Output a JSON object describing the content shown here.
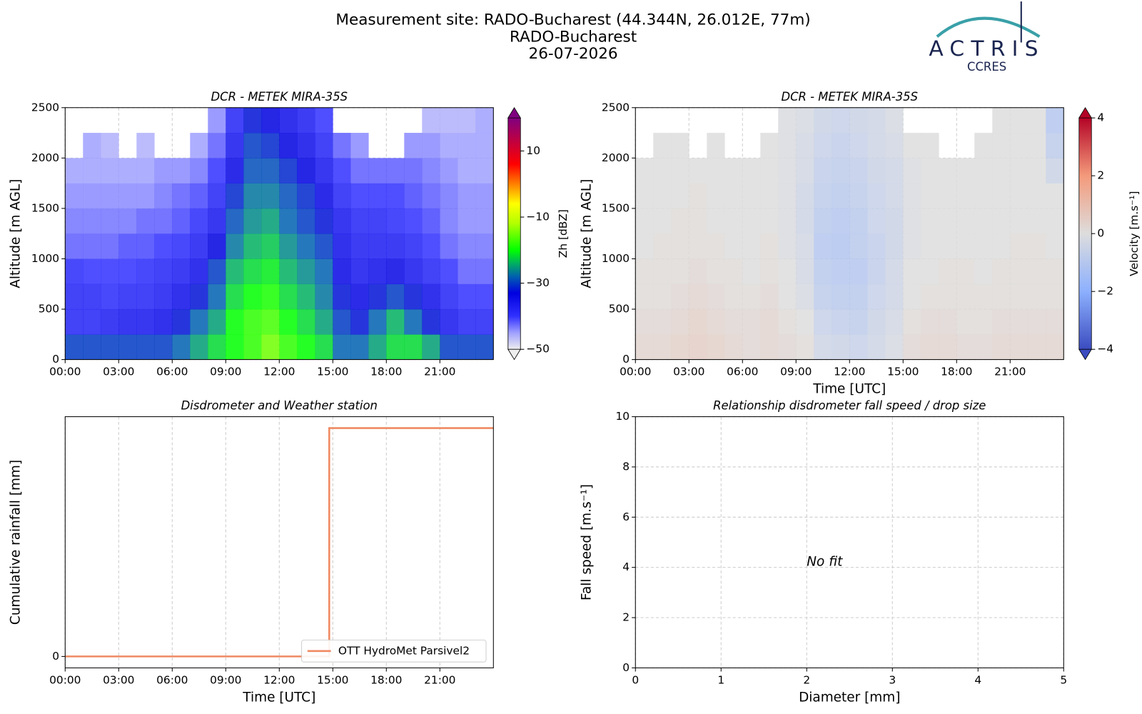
{
  "header": {
    "lines": [
      "Measurement site: RADO-Bucharest (44.344N, 26.012E, 77m)",
      "RADO-Bucharest",
      "26-07-2026"
    ]
  },
  "logo": {
    "name": "ACTRIS",
    "sub": "CCRES"
  },
  "chart_data": [
    {
      "type": "heatmap",
      "title": "DCR - METEK MIRA-35S",
      "ylabel": "Altitude [m AGL]",
      "xlim": [
        0,
        24
      ],
      "xticks": [
        {
          "value": 0,
          "label": "00:00"
        },
        {
          "value": 3,
          "label": "03:00"
        },
        {
          "value": 6,
          "label": "06:00"
        },
        {
          "value": 9,
          "label": "09:00"
        },
        {
          "value": 12,
          "label": "12:00"
        },
        {
          "value": 15,
          "label": "15:00"
        },
        {
          "value": 18,
          "label": "18:00"
        },
        {
          "value": 21,
          "label": "21:00"
        }
      ],
      "ylim": [
        0,
        2500
      ],
      "yticks": [
        0,
        500,
        1000,
        1500,
        2000,
        2500
      ],
      "grid": "both",
      "x": [
        0,
        1,
        2,
        3,
        4,
        5,
        6,
        7,
        8,
        9,
        10,
        11,
        12,
        13,
        14,
        15,
        16,
        17,
        18,
        19,
        20,
        21,
        22,
        23
      ],
      "y": [
        0,
        250,
        500,
        750,
        1000,
        1250,
        1500,
        1750,
        2000,
        2250
      ],
      "z": [
        [
          -30,
          -30,
          -30,
          -30,
          -30,
          -30,
          -28,
          -25,
          -22,
          -20,
          -18,
          -15,
          -18,
          -20,
          -22,
          -28,
          -28,
          -25,
          -22,
          -22,
          -25,
          -30,
          -30,
          -30
        ],
        [
          -38,
          -38,
          -37,
          -36,
          -36,
          -35,
          -32,
          -28,
          -25,
          -20,
          -18,
          -17,
          -20,
          -22,
          -25,
          -30,
          -32,
          -28,
          -24,
          -28,
          -32,
          -36,
          -38,
          -38
        ],
        [
          -38,
          -38,
          -39,
          -38,
          -38,
          -37,
          -35,
          -32,
          -28,
          -22,
          -20,
          -19,
          -22,
          -24,
          -27,
          -32,
          -34,
          -32,
          -30,
          -32,
          -35,
          -38,
          -40,
          -40
        ],
        [
          -39,
          -40,
          -40,
          -40,
          -39,
          -38,
          -37,
          -35,
          -30,
          -24,
          -22,
          -21,
          -24,
          -26,
          -28,
          -34,
          -36,
          -35,
          -34,
          -36,
          -38,
          -40,
          -42,
          -42
        ],
        [
          -42,
          -42,
          -42,
          -41,
          -41,
          -40,
          -39,
          -37,
          -33,
          -27,
          -24,
          -23,
          -26,
          -28,
          -30,
          -35,
          -37,
          -37,
          -37,
          -38,
          -40,
          -42,
          -43,
          -43
        ],
        [
          -43,
          -43,
          -43,
          -43,
          -42,
          -42,
          -41,
          -39,
          -36,
          -29,
          -26,
          -25,
          -28,
          -30,
          -32,
          -36,
          -38,
          -38,
          -39,
          -40,
          -41,
          -43,
          -44,
          -44
        ],
        [
          -44,
          -44,
          -44,
          -44,
          -44,
          -43,
          -42,
          -41,
          -38,
          -31,
          -27,
          -27,
          -29,
          -31,
          -34,
          -38,
          -40,
          -40,
          -40,
          -41,
          -42,
          -43,
          -44,
          -44
        ],
        [
          -45,
          -45,
          -45,
          -45,
          -45,
          -44,
          -44,
          -43,
          -40,
          -34,
          -29,
          -29,
          -31,
          -33,
          -36,
          -40,
          -42,
          -42,
          -42,
          -42,
          -43,
          -44,
          -45,
          -45
        ],
        [
          null,
          -45,
          -46,
          null,
          -46,
          null,
          null,
          -45,
          -42,
          -36,
          -30,
          -31,
          -33,
          -35,
          -38,
          -42,
          -44,
          null,
          null,
          -44,
          -44,
          -45,
          -45,
          -45
        ],
        [
          null,
          null,
          null,
          null,
          null,
          null,
          null,
          null,
          -44,
          -38,
          -32,
          -33,
          -35,
          -37,
          -40,
          null,
          null,
          null,
          null,
          null,
          -46,
          -46,
          -46,
          -45
        ]
      ],
      "colorbar": {
        "label": "Zh [dBZ]",
        "clim": [
          -50,
          20
        ],
        "ticks": [
          10,
          {
            "value": -10,
            "label": "−10"
          },
          {
            "value": -30,
            "label": "−30"
          },
          {
            "value": -50,
            "label": "−50"
          }
        ],
        "colorscale": [
          [
            -50,
            "#eeeeee"
          ],
          [
            -45,
            "#a0a0ff"
          ],
          [
            -40,
            "#3030ff"
          ],
          [
            -33,
            "#0000e0"
          ],
          [
            -28,
            "#0060b0"
          ],
          [
            -24,
            "#00b060"
          ],
          [
            -20,
            "#00ff00"
          ],
          [
            -12,
            "#b0ff00"
          ],
          [
            -6,
            "#ffff00"
          ],
          [
            0,
            "#ff8000"
          ],
          [
            6,
            "#ff0000"
          ],
          [
            13,
            "#c00040"
          ],
          [
            20,
            "#800080"
          ]
        ]
      }
    },
    {
      "type": "heatmap",
      "title": "DCR - METEK MIRA-35S",
      "ylabel": "Altitude [m AGL]",
      "xlabel": "Time [UTC]",
      "xlim": [
        0,
        24
      ],
      "xticks": [
        {
          "value": 0,
          "label": "00:00"
        },
        {
          "value": 3,
          "label": "03:00"
        },
        {
          "value": 6,
          "label": "06:00"
        },
        {
          "value": 9,
          "label": "09:00"
        },
        {
          "value": 12,
          "label": "12:00"
        },
        {
          "value": 15,
          "label": "15:00"
        },
        {
          "value": 18,
          "label": "18:00"
        },
        {
          "value": 21,
          "label": "21:00"
        }
      ],
      "ylim": [
        0,
        2500
      ],
      "yticks": [
        0,
        500,
        1000,
        1500,
        2000,
        2500
      ],
      "grid": "both",
      "x": [
        0,
        1,
        2,
        3,
        4,
        5,
        6,
        7,
        8,
        9,
        10,
        11,
        12,
        13,
        14,
        15,
        16,
        17,
        18,
        19,
        20,
        21,
        22,
        23
      ],
      "y": [
        0,
        250,
        500,
        750,
        1000,
        1250,
        1500,
        1750,
        2000,
        2250
      ],
      "z": [
        [
          0.3,
          0.3,
          0.4,
          0.5,
          0.4,
          0.3,
          0.2,
          0.3,
          0.2,
          0.1,
          -0.4,
          -0.5,
          -0.6,
          -0.4,
          -0.2,
          0.2,
          0.3,
          0.3,
          0.2,
          0.2,
          0.3,
          0.3,
          0.3,
          0.3
        ],
        [
          0.2,
          0.2,
          0.3,
          0.4,
          0.3,
          0.2,
          0.2,
          0.3,
          0.1,
          0.0,
          -0.6,
          -0.7,
          -0.8,
          -0.5,
          -0.3,
          0.1,
          0.2,
          0.2,
          0.1,
          0.1,
          0.2,
          0.2,
          0.2,
          0.2
        ],
        [
          0.1,
          0.1,
          0.2,
          0.3,
          0.2,
          0.1,
          0.1,
          0.2,
          0.0,
          -0.2,
          -0.8,
          -0.9,
          -0.9,
          -0.6,
          -0.4,
          0.0,
          0.1,
          0.1,
          0.1,
          0.1,
          0.1,
          0.1,
          0.1,
          0.1
        ],
        [
          0.1,
          0.1,
          0.1,
          0.2,
          0.1,
          0.1,
          0.0,
          0.1,
          0.0,
          -0.3,
          -0.9,
          -1.0,
          -1.0,
          -0.7,
          -0.4,
          0.0,
          0.0,
          0.1,
          0.1,
          0.0,
          0.1,
          0.1,
          0.1,
          0.1
        ],
        [
          0.0,
          0.1,
          0.1,
          0.1,
          0.1,
          0.0,
          0.0,
          0.1,
          -0.1,
          -0.3,
          -1.0,
          -1.1,
          -0.9,
          -0.7,
          -0.5,
          -0.1,
          0.0,
          0.0,
          0.0,
          0.0,
          0.0,
          0.1,
          0.1,
          0.0
        ],
        [
          0.0,
          0.0,
          0.1,
          0.1,
          0.0,
          0.0,
          0.0,
          0.0,
          -0.1,
          -0.4,
          -0.9,
          -1.0,
          -0.9,
          -0.6,
          -0.5,
          -0.1,
          0.0,
          0.0,
          0.0,
          0.0,
          0.0,
          0.0,
          0.0,
          0.0
        ],
        [
          0.0,
          0.0,
          0.0,
          0.1,
          0.0,
          0.0,
          0.0,
          0.0,
          -0.1,
          -0.4,
          -0.8,
          -0.9,
          -0.8,
          -0.6,
          -0.4,
          -0.1,
          0.0,
          0.0,
          0.0,
          0.0,
          0.0,
          0.0,
          0.0,
          0.0
        ],
        [
          0.0,
          0.0,
          0.0,
          0.0,
          0.0,
          0.0,
          0.0,
          0.0,
          -0.1,
          -0.3,
          -0.7,
          -0.8,
          -0.7,
          -0.5,
          -0.4,
          -0.1,
          0.0,
          0.0,
          0.0,
          0.0,
          0.0,
          0.0,
          0.0,
          -0.5
        ],
        [
          null,
          0.0,
          0.0,
          null,
          0.0,
          null,
          null,
          0.0,
          -0.1,
          -0.3,
          -0.6,
          -0.7,
          -0.6,
          -0.4,
          -0.3,
          0.0,
          0.0,
          null,
          null,
          0.0,
          0.0,
          0.0,
          0.0,
          -0.8
        ],
        [
          null,
          null,
          null,
          null,
          null,
          null,
          null,
          null,
          -0.1,
          -0.2,
          -0.5,
          -0.6,
          -0.5,
          -0.4,
          -0.2,
          null,
          null,
          null,
          null,
          null,
          0.0,
          0.0,
          0.0,
          -1.0
        ]
      ],
      "colorbar": {
        "label": "Velocity [m.s⁻¹]",
        "clim": [
          -4,
          4
        ],
        "ticks": [
          4,
          2,
          0,
          {
            "value": -2,
            "label": "−2"
          },
          {
            "value": -4,
            "label": "−4"
          }
        ],
        "colorscale": [
          [
            -4,
            "#3b4cc0"
          ],
          [
            -2,
            "#8db0fe"
          ],
          [
            0,
            "#dddddd"
          ],
          [
            2,
            "#f49a7b"
          ],
          [
            4,
            "#b40426"
          ]
        ]
      }
    },
    {
      "type": "line",
      "title": "Disdrometer and Weather station",
      "xlabel": "Time [UTC]",
      "ylabel": "Cumulative rainfall [mm]",
      "xlim": [
        0,
        24
      ],
      "xticks": [
        {
          "value": 0,
          "label": "00:00"
        },
        {
          "value": 3,
          "label": "03:00"
        },
        {
          "value": 6,
          "label": "06:00"
        },
        {
          "value": 9,
          "label": "09:00"
        },
        {
          "value": 12,
          "label": "12:00"
        },
        {
          "value": 15,
          "label": "15:00"
        },
        {
          "value": 18,
          "label": "18:00"
        },
        {
          "value": 21,
          "label": "21:00"
        }
      ],
      "ylim": [
        -0.05,
        1.05
      ],
      "yticks": [
        0
      ],
      "grid": "x",
      "legend": "lower right",
      "series": [
        {
          "name": "OTT HydroMet Parsivel2",
          "color": "#ef8a62",
          "x": [
            0,
            14.8,
            14.8,
            24
          ],
          "values": [
            0,
            0,
            1,
            1
          ]
        }
      ]
    },
    {
      "type": "scatter",
      "title": "Relationship disdrometer fall speed / drop size",
      "xlabel": "Diameter [mm]",
      "ylabel": "Fall speed [m.s⁻¹]",
      "xlim": [
        0,
        5
      ],
      "xticks": [
        0,
        1,
        2,
        3,
        4,
        5
      ],
      "ylim": [
        0,
        10
      ],
      "yticks": [
        0,
        2,
        4,
        6,
        8,
        10
      ],
      "grid": "both",
      "annotation": "No fit"
    }
  ]
}
